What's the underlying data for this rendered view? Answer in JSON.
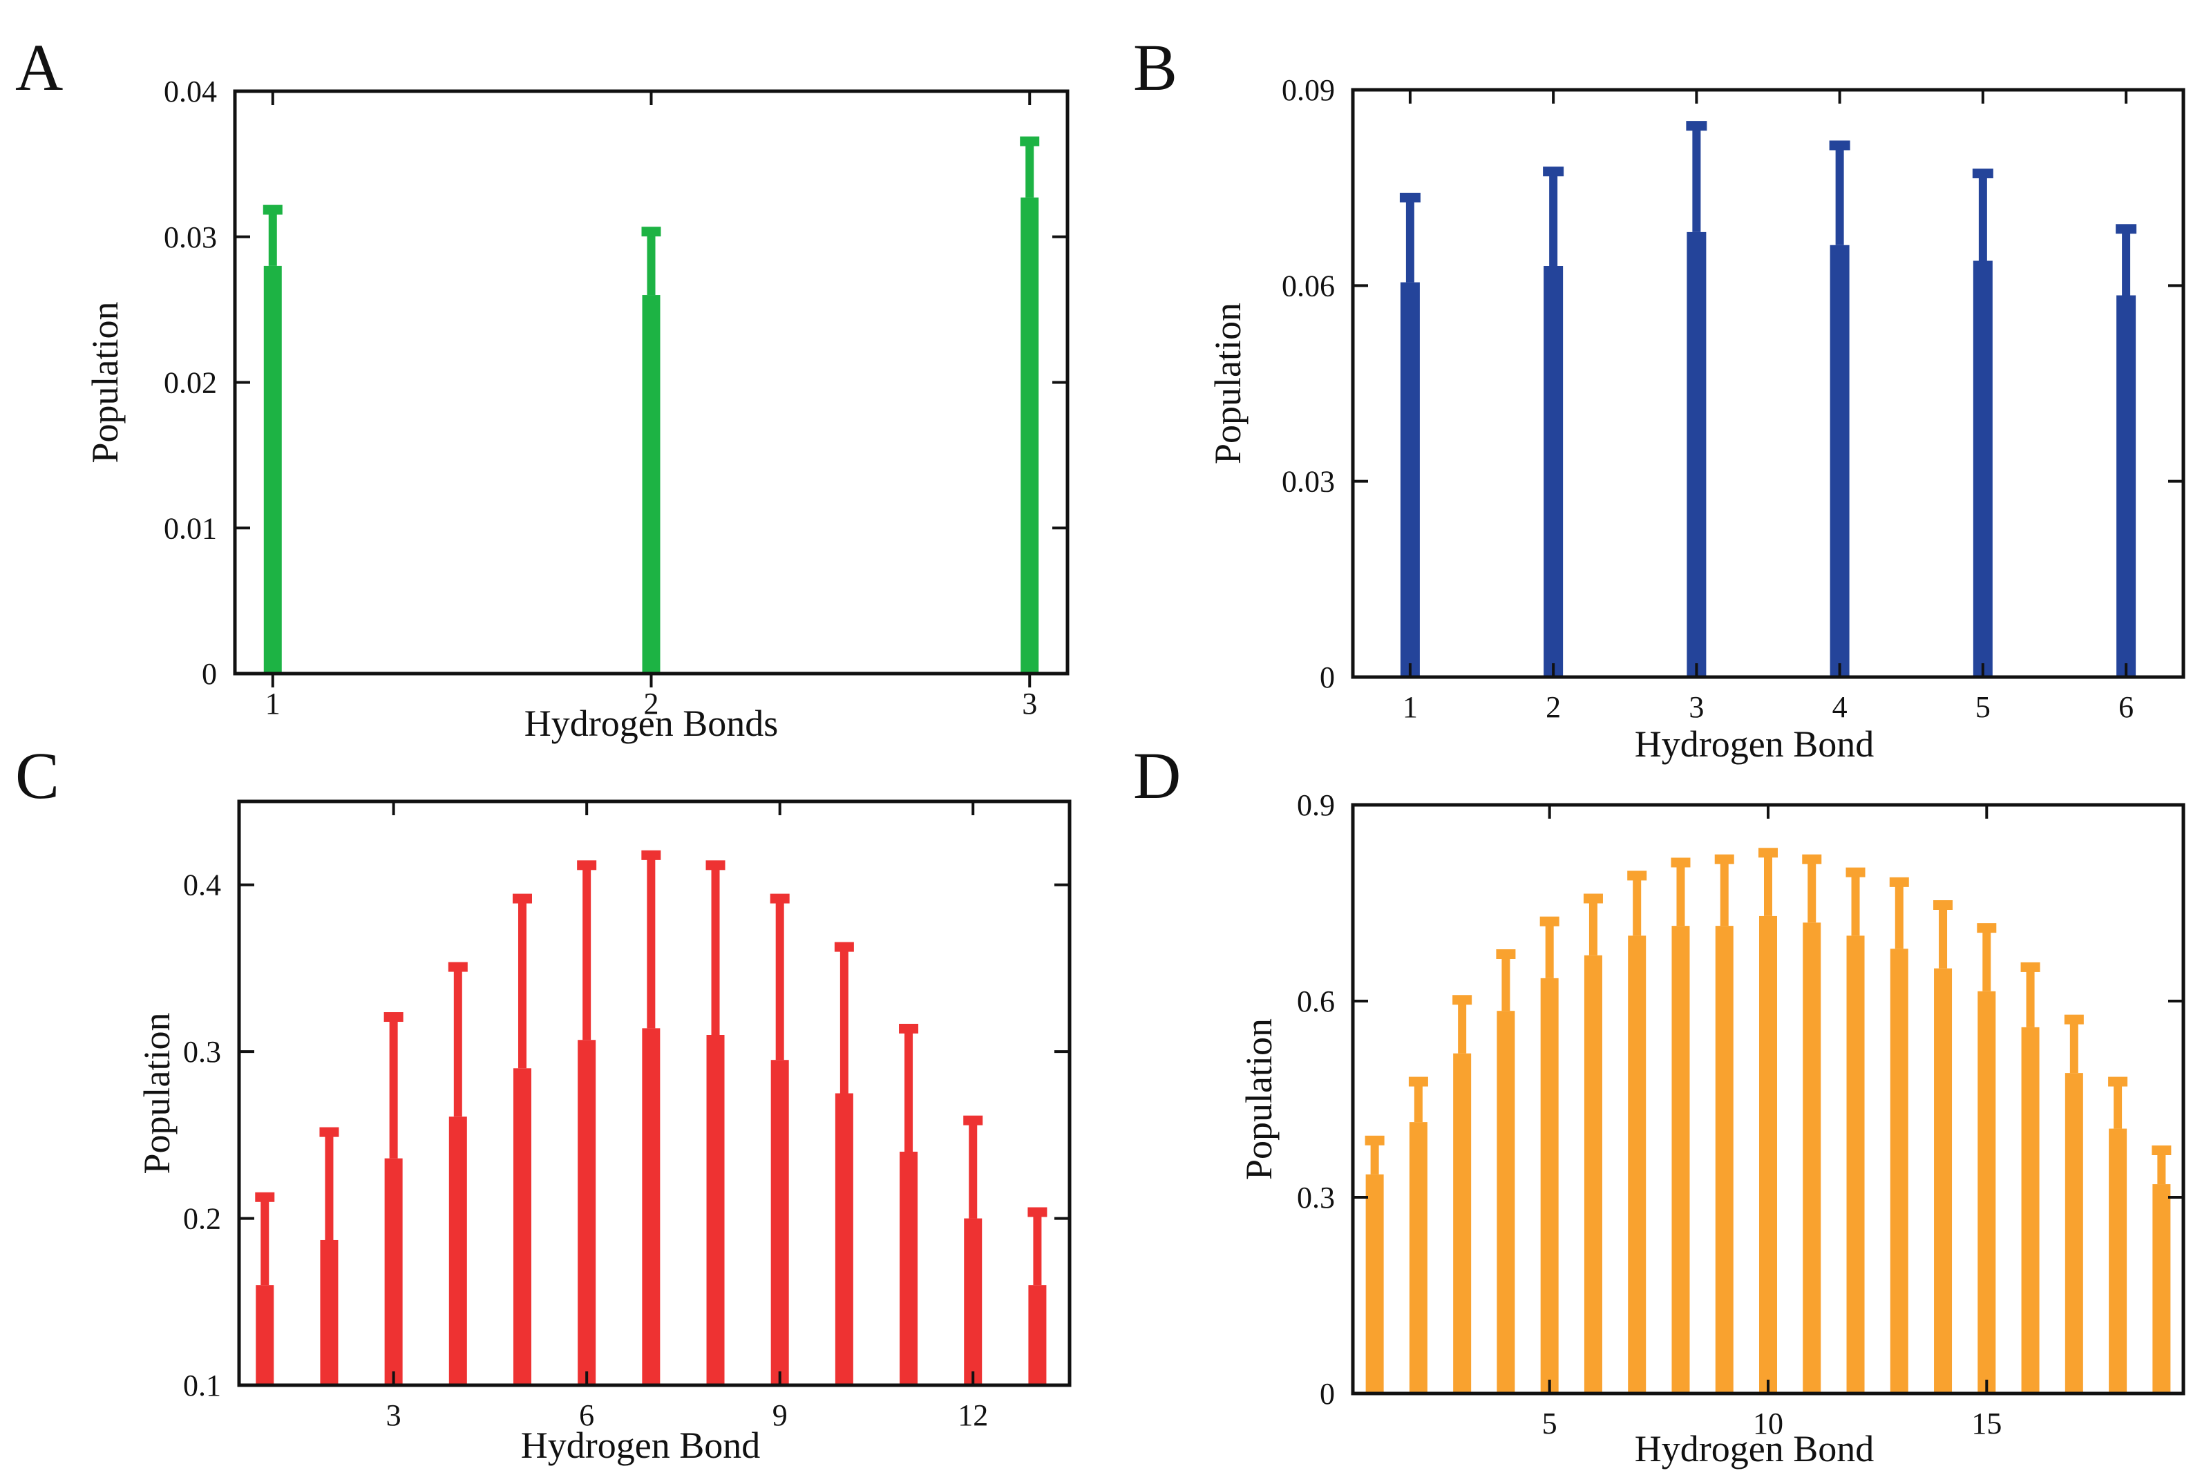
{
  "figure": {
    "panels": [
      "A",
      "B",
      "C",
      "D"
    ]
  },
  "chart_data": [
    {
      "panel": "A",
      "type": "bar",
      "color": "#1DB344",
      "xlabel": "Hydrogen Bonds",
      "ylabel": "Population",
      "xlim": [
        0.9,
        3.1
      ],
      "ylim": [
        0,
        0.04
      ],
      "x_ticks": [
        1,
        2,
        3
      ],
      "y_ticks": [
        0,
        0.01,
        0.02,
        0.03,
        0.04
      ],
      "y_tick_labels": [
        "0",
        "0.01",
        "0.02",
        "0.03",
        "0.04"
      ],
      "x": [
        1,
        2,
        3
      ],
      "values": [
        0.028,
        0.026,
        0.0327
      ],
      "error_upper": [
        0.032,
        0.0305,
        0.0367
      ]
    },
    {
      "panel": "B",
      "type": "bar",
      "color": "#24449A",
      "xlabel": "Hydrogen Bond",
      "ylabel": "Population",
      "xlim": [
        0.6,
        6.4
      ],
      "ylim": [
        0,
        0.09
      ],
      "x_ticks": [
        1,
        2,
        3,
        4,
        5,
        6
      ],
      "y_ticks": [
        0,
        0.03,
        0.06,
        0.09
      ],
      "y_tick_labels": [
        "0",
        "0.03",
        "0.06",
        "0.09"
      ],
      "x": [
        1,
        2,
        3,
        4,
        5,
        6
      ],
      "values": [
        0.0605,
        0.063,
        0.0682,
        0.0662,
        0.0638,
        0.0585
      ],
      "error_upper": [
        0.0738,
        0.0778,
        0.0848,
        0.0818,
        0.0775,
        0.069
      ]
    },
    {
      "panel": "C",
      "type": "bar",
      "color": "#EE3232",
      "xlabel": "Hydrogen Bond",
      "ylabel": "Population",
      "xlim": [
        0.6,
        13.5
      ],
      "ylim": [
        0.1,
        0.45
      ],
      "x_ticks": [
        3,
        6,
        9,
        12
      ],
      "y_ticks": [
        0.1,
        0.2,
        0.3,
        0.4
      ],
      "y_tick_labels": [
        "0.1",
        "0.2",
        "0.3",
        "0.4"
      ],
      "x": [
        1,
        2,
        3,
        4,
        5,
        6,
        7,
        8,
        9,
        10,
        11,
        12,
        13
      ],
      "values": [
        0.16,
        0.187,
        0.236,
        0.261,
        0.29,
        0.307,
        0.314,
        0.31,
        0.295,
        0.275,
        0.24,
        0.2,
        0.16
      ],
      "error_upper": [
        0.214,
        0.253,
        0.322,
        0.352,
        0.393,
        0.413,
        0.419,
        0.413,
        0.393,
        0.364,
        0.315,
        0.26,
        0.205
      ]
    },
    {
      "panel": "D",
      "type": "bar",
      "color": "#F9A22F",
      "xlabel": "Hydrogen Bond",
      "ylabel": "Population",
      "xlim": [
        0.5,
        19.5
      ],
      "ylim": [
        0,
        0.9
      ],
      "x_ticks": [
        5,
        10,
        15
      ],
      "y_ticks": [
        0,
        0.3,
        0.6,
        0.9
      ],
      "y_tick_labels": [
        "0",
        "0.3",
        "0.6",
        "0.9"
      ],
      "x": [
        1,
        2,
        3,
        4,
        5,
        6,
        7,
        8,
        9,
        10,
        11,
        12,
        13,
        14,
        15,
        16,
        17,
        18,
        19
      ],
      "values": [
        0.335,
        0.415,
        0.52,
        0.585,
        0.635,
        0.67,
        0.7,
        0.715,
        0.715,
        0.73,
        0.72,
        0.7,
        0.68,
        0.65,
        0.615,
        0.56,
        0.49,
        0.405,
        0.32
      ],
      "error_upper": [
        0.39,
        0.48,
        0.605,
        0.675,
        0.725,
        0.76,
        0.795,
        0.815,
        0.82,
        0.83,
        0.82,
        0.8,
        0.785,
        0.75,
        0.715,
        0.655,
        0.575,
        0.48,
        0.375
      ]
    }
  ]
}
